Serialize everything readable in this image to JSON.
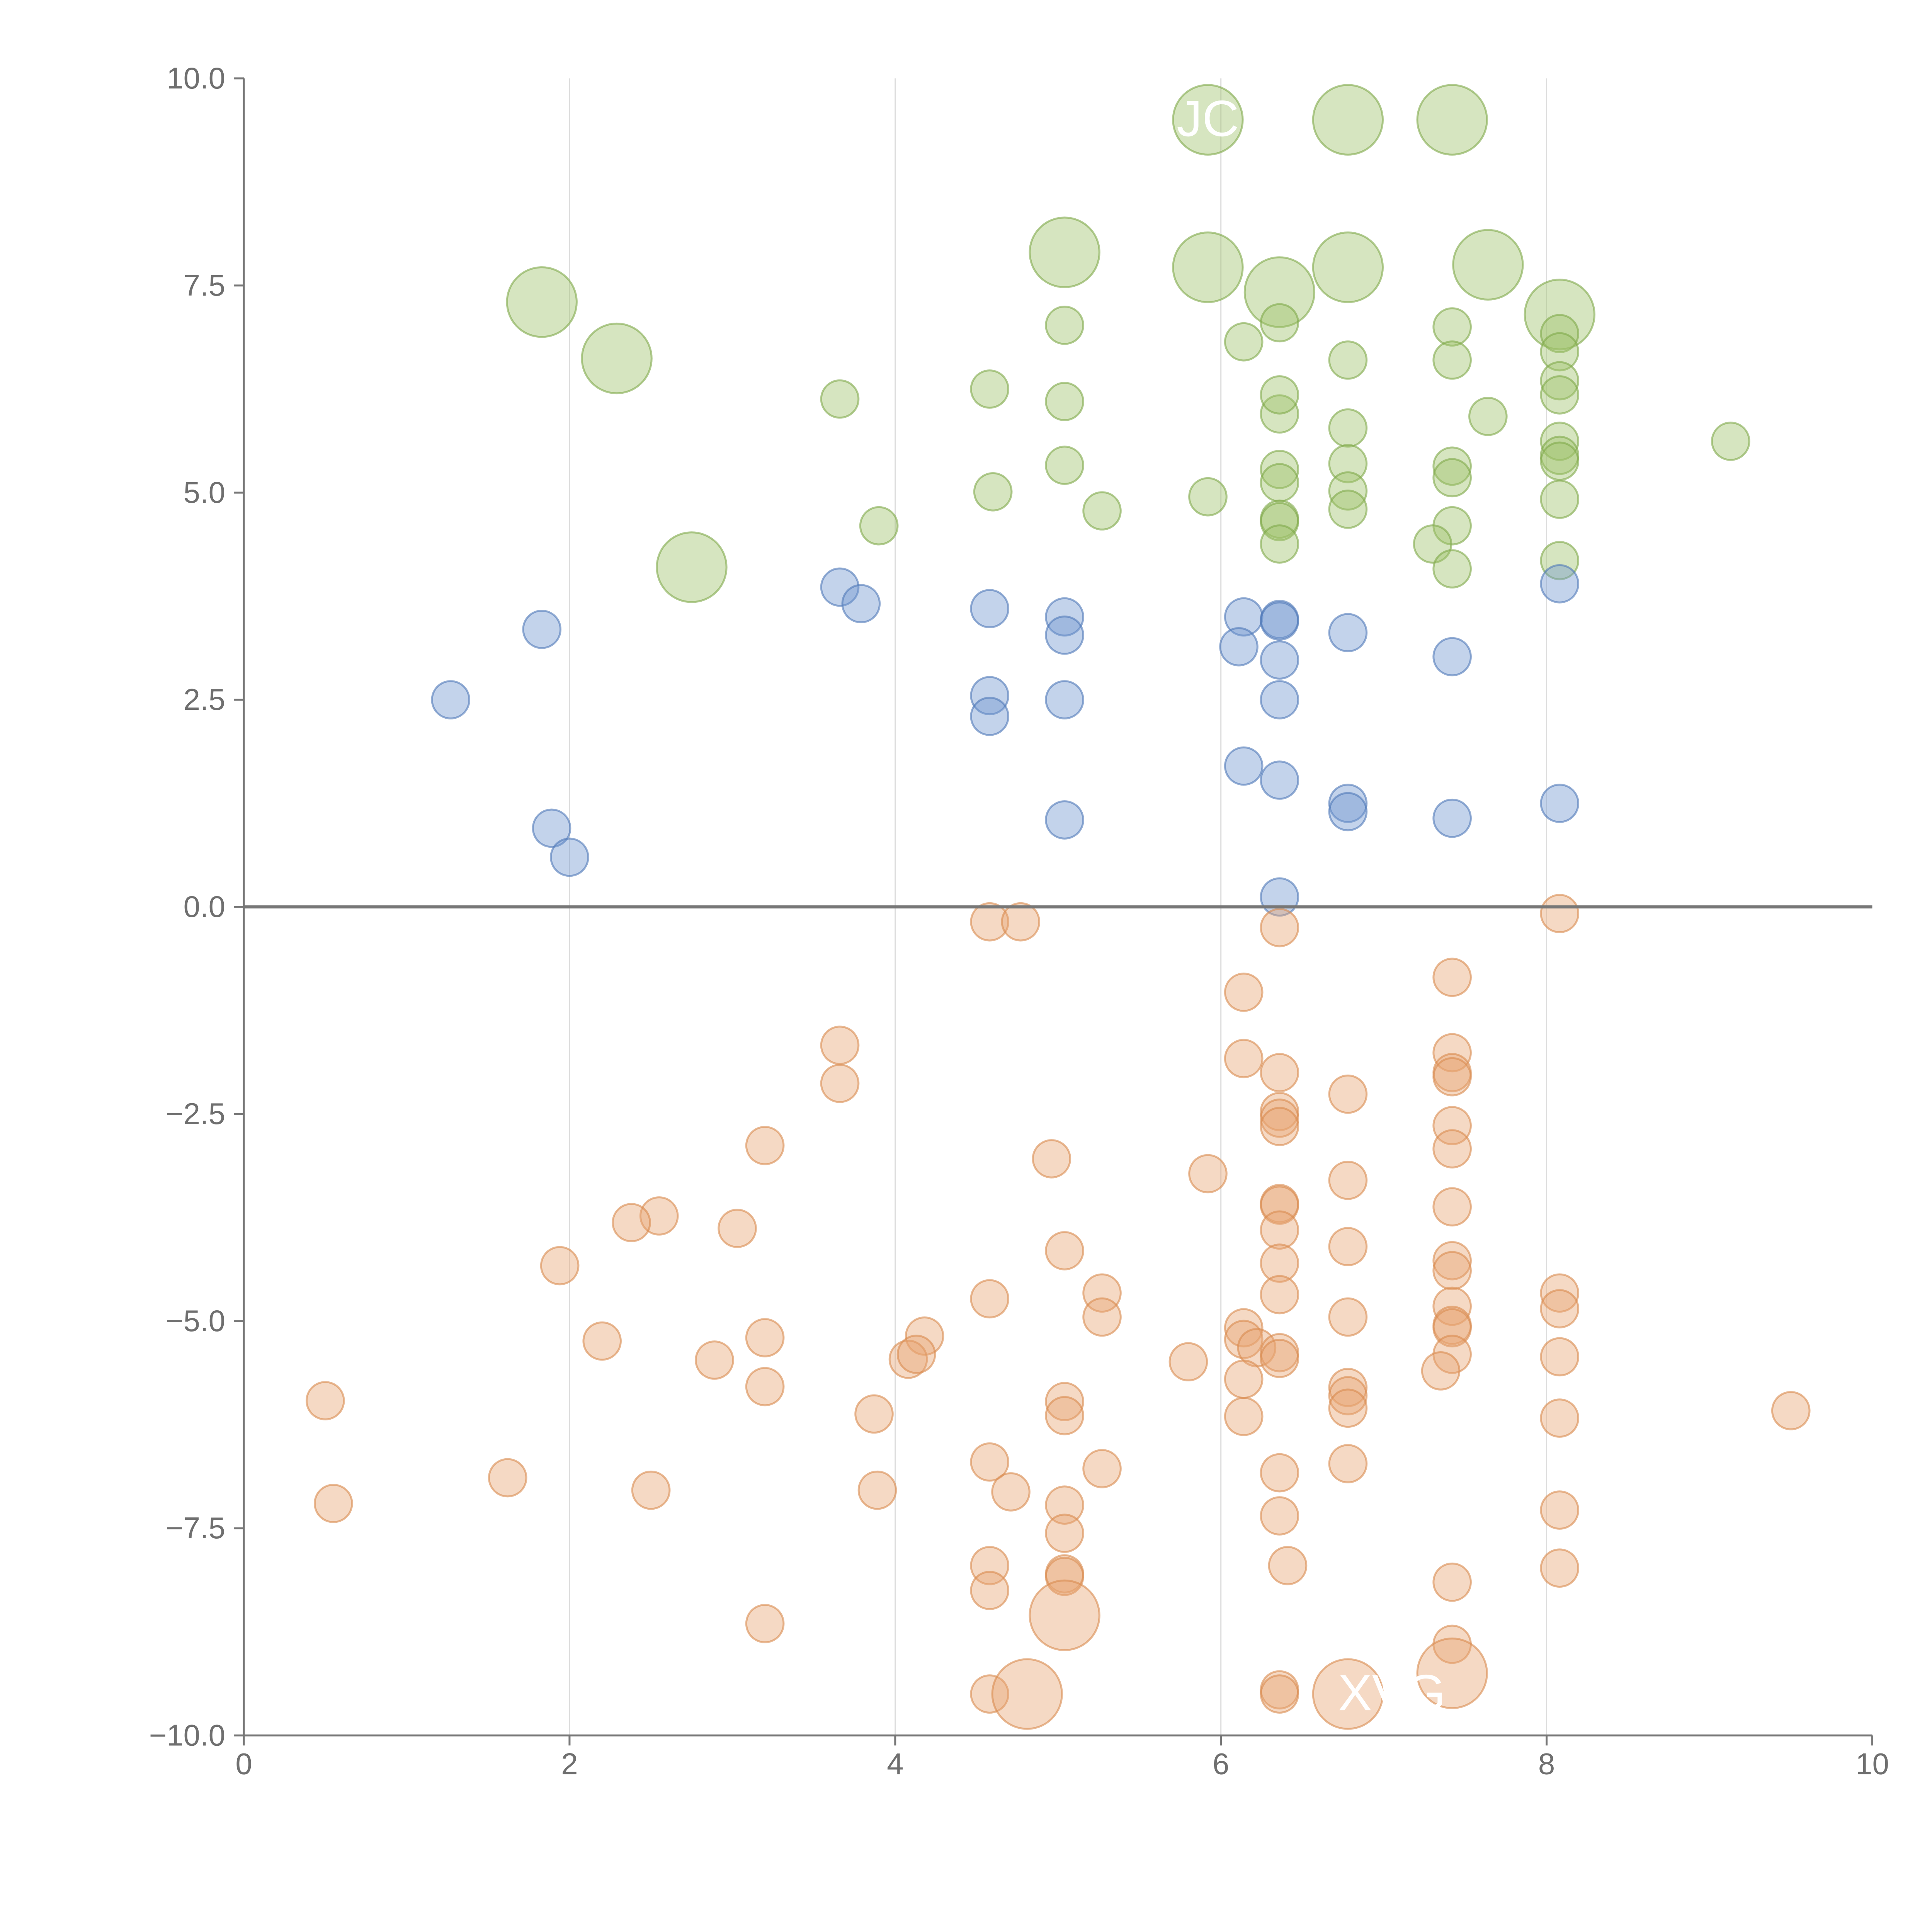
{
  "chart_data": {
    "type": "scatter",
    "title": "",
    "xlabel": "",
    "ylabel": "",
    "xlim": [
      0,
      10
    ],
    "ylim": [
      -10,
      10
    ],
    "x_ticks": [
      0,
      2,
      4,
      6,
      8,
      10
    ],
    "y_ticks": [
      10,
      7.5,
      5,
      2.5,
      0,
      -2.5,
      -5,
      -7.5,
      -10
    ],
    "x_tick_labels": [
      "0",
      "2",
      "4",
      "6",
      "8",
      "10"
    ],
    "y_tick_labels": [
      "10.0",
      "7.5",
      "5.0",
      "2.5",
      "0.0",
      "−2.5",
      "−5.0",
      "−7.5",
      "−10.0"
    ],
    "vertical_gridlines": [
      2,
      4,
      6,
      8
    ],
    "zero_line": 0,
    "legend": "none",
    "series": [
      {
        "name": "green",
        "color": "#9dc26a",
        "stroke": "#7fa84a",
        "points": [
          [
            5.92,
            9.5
          ],
          [
            6.78,
            9.5
          ],
          [
            7.42,
            9.5
          ],
          [
            5.04,
            7.9
          ],
          [
            5.92,
            7.72
          ],
          [
            6.78,
            7.72
          ],
          [
            7.64,
            7.75
          ],
          [
            6.36,
            7.42
          ],
          [
            8.08,
            7.15
          ],
          [
            1.83,
            7.3
          ],
          [
            2.29,
            6.62
          ],
          [
            2.75,
            4.1
          ],
          [
            5.04,
            7.02
          ],
          [
            6.14,
            6.82
          ],
          [
            6.36,
            7.05
          ],
          [
            6.78,
            6.6
          ],
          [
            7.42,
            7.0
          ],
          [
            7.42,
            6.6
          ],
          [
            8.08,
            6.92
          ],
          [
            8.08,
            6.7
          ],
          [
            8.08,
            6.35
          ],
          [
            8.08,
            6.18
          ],
          [
            7.64,
            5.92
          ],
          [
            6.36,
            5.95
          ],
          [
            3.66,
            6.13
          ],
          [
            4.58,
            6.25
          ],
          [
            5.04,
            6.1
          ],
          [
            6.36,
            6.18
          ],
          [
            6.78,
            5.78
          ],
          [
            6.78,
            5.35
          ],
          [
            7.42,
            5.32
          ],
          [
            7.42,
            5.18
          ],
          [
            8.08,
            5.62
          ],
          [
            8.08,
            5.45
          ],
          [
            8.08,
            5.38
          ],
          [
            9.13,
            5.62
          ],
          [
            5.04,
            5.33
          ],
          [
            6.36,
            5.28
          ],
          [
            6.36,
            5.12
          ],
          [
            6.78,
            5.02
          ],
          [
            4.6,
            5.01
          ],
          [
            5.92,
            4.95
          ],
          [
            8.08,
            4.92
          ],
          [
            5.27,
            4.78
          ],
          [
            6.78,
            4.8
          ],
          [
            6.36,
            4.68
          ],
          [
            6.36,
            4.65
          ],
          [
            3.9,
            4.6
          ],
          [
            7.42,
            4.6
          ],
          [
            6.36,
            4.38
          ],
          [
            7.3,
            4.38
          ],
          [
            8.08,
            4.18
          ],
          [
            7.42,
            4.08
          ]
        ],
        "sizes": [
          "large",
          "large",
          "large",
          "large",
          "large",
          "large",
          "large",
          "large",
          "large",
          "large",
          "large",
          "large",
          "small",
          "small",
          "small",
          "small",
          "small",
          "small",
          "small",
          "small",
          "small",
          "small",
          "small",
          "small",
          "small",
          "small",
          "small",
          "small",
          "small",
          "small",
          "small",
          "small",
          "small",
          "small",
          "small",
          "small",
          "small",
          "small",
          "small",
          "small",
          "small",
          "small",
          "small",
          "small",
          "small",
          "small",
          "small",
          "small",
          "small",
          "small",
          "small",
          "small",
          "small"
        ]
      },
      {
        "name": "blue",
        "color": "#7196cf",
        "stroke": "#4f78b8",
        "points": [
          [
            1.27,
            2.5
          ],
          [
            1.83,
            3.35
          ],
          [
            1.89,
            0.95
          ],
          [
            2.0,
            0.6
          ],
          [
            3.66,
            3.86
          ],
          [
            3.79,
            3.66
          ],
          [
            4.58,
            3.6
          ],
          [
            4.58,
            2.55
          ],
          [
            4.58,
            2.3
          ],
          [
            5.04,
            3.5
          ],
          [
            5.04,
            3.28
          ],
          [
            5.04,
            2.5
          ],
          [
            5.04,
            1.05
          ],
          [
            6.14,
            3.5
          ],
          [
            6.11,
            3.14
          ],
          [
            6.36,
            3.47
          ],
          [
            6.36,
            3.45
          ],
          [
            6.36,
            2.98
          ],
          [
            6.36,
            2.5
          ],
          [
            6.14,
            1.7
          ],
          [
            6.36,
            1.53
          ],
          [
            6.36,
            0.12
          ],
          [
            6.78,
            3.31
          ],
          [
            6.78,
            1.25
          ],
          [
            6.78,
            1.15
          ],
          [
            7.42,
            3.02
          ],
          [
            7.42,
            1.07
          ],
          [
            8.08,
            3.9
          ],
          [
            8.08,
            1.25
          ]
        ],
        "sizes": "small"
      },
      {
        "name": "orange",
        "color": "#e8a472",
        "stroke": "#d98a4f",
        "points": [
          [
            4.58,
            -0.18
          ],
          [
            4.77,
            -0.18
          ],
          [
            6.36,
            -0.25
          ],
          [
            8.08,
            -0.08
          ],
          [
            7.42,
            -0.85
          ],
          [
            6.14,
            -1.03
          ],
          [
            3.66,
            -1.67
          ],
          [
            3.66,
            -2.13
          ],
          [
            6.14,
            -1.83
          ],
          [
            6.36,
            -2.0
          ],
          [
            7.42,
            -1.76
          ],
          [
            7.42,
            -2.0
          ],
          [
            7.42,
            -2.05
          ],
          [
            6.78,
            -2.26
          ],
          [
            6.36,
            -2.47
          ],
          [
            6.36,
            -2.55
          ],
          [
            6.36,
            -2.65
          ],
          [
            7.42,
            -2.64
          ],
          [
            3.2,
            -2.88
          ],
          [
            7.42,
            -2.92
          ],
          [
            4.96,
            -3.04
          ],
          [
            5.92,
            -3.22
          ],
          [
            6.78,
            -3.3
          ],
          [
            2.55,
            -3.73
          ],
          [
            2.38,
            -3.81
          ],
          [
            3.03,
            -3.88
          ],
          [
            6.36,
            -3.58
          ],
          [
            6.36,
            -3.6
          ],
          [
            7.42,
            -3.62
          ],
          [
            6.36,
            -3.9
          ],
          [
            6.78,
            -4.1
          ],
          [
            5.04,
            -4.15
          ],
          [
            1.94,
            -4.33
          ],
          [
            6.36,
            -4.3
          ],
          [
            7.42,
            -4.27
          ],
          [
            7.42,
            -4.39
          ],
          [
            5.27,
            -4.66
          ],
          [
            4.58,
            -4.73
          ],
          [
            6.36,
            -4.68
          ],
          [
            8.08,
            -4.66
          ],
          [
            8.08,
            -4.85
          ],
          [
            7.42,
            -4.82
          ],
          [
            6.78,
            -4.95
          ],
          [
            5.27,
            -4.95
          ],
          [
            2.2,
            -5.24
          ],
          [
            3.2,
            -5.2
          ],
          [
            4.18,
            -5.18
          ],
          [
            6.14,
            -5.08
          ],
          [
            6.14,
            -5.22
          ],
          [
            6.22,
            -5.32
          ],
          [
            7.42,
            -5.05
          ],
          [
            7.42,
            -5.08
          ],
          [
            4.08,
            -5.46
          ],
          [
            4.13,
            -5.4
          ],
          [
            2.89,
            -5.47
          ],
          [
            5.8,
            -5.49
          ],
          [
            6.36,
            -5.38
          ],
          [
            6.36,
            -5.45
          ],
          [
            7.42,
            -5.4
          ],
          [
            8.08,
            -5.43
          ],
          [
            7.35,
            -5.6
          ],
          [
            6.14,
            -5.7
          ],
          [
            3.2,
            -5.79
          ],
          [
            6.78,
            -5.8
          ],
          [
            6.78,
            -5.9
          ],
          [
            0.5,
            -5.96
          ],
          [
            5.04,
            -5.97
          ],
          [
            6.78,
            -6.05
          ],
          [
            5.04,
            -6.14
          ],
          [
            3.87,
            -6.12
          ],
          [
            6.14,
            -6.15
          ],
          [
            8.08,
            -6.17
          ],
          [
            9.5,
            -6.08
          ],
          [
            4.58,
            -6.7
          ],
          [
            5.27,
            -6.78
          ],
          [
            6.78,
            -6.72
          ],
          [
            6.36,
            -6.83
          ],
          [
            1.62,
            -6.89
          ],
          [
            0.55,
            -7.2
          ],
          [
            2.5,
            -7.04
          ],
          [
            3.89,
            -7.04
          ],
          [
            4.71,
            -7.06
          ],
          [
            5.04,
            -7.22
          ],
          [
            6.36,
            -7.35
          ],
          [
            8.08,
            -7.28
          ],
          [
            5.04,
            -7.56
          ],
          [
            4.58,
            -7.95
          ],
          [
            6.41,
            -7.95
          ],
          [
            8.08,
            -7.98
          ],
          [
            5.04,
            -8.05
          ],
          [
            5.04,
            -8.08
          ],
          [
            4.58,
            -8.25
          ],
          [
            7.42,
            -8.15
          ],
          [
            7.42,
            -8.9
          ],
          [
            4.58,
            -9.5
          ],
          [
            6.36,
            -9.45
          ],
          [
            6.36,
            -9.5
          ],
          [
            3.2,
            -8.65
          ],
          [
            5.04,
            -8.55
          ],
          [
            4.81,
            -9.5
          ],
          [
            6.78,
            -9.5
          ],
          [
            7.42,
            -9.25
          ]
        ],
        "large_from_index": 98
      }
    ],
    "bubble_labels": [
      {
        "text": "JC",
        "x": 5.92,
        "y": 9.5
      },
      {
        "text": "XVG",
        "x": 7.05,
        "y": -9.5
      }
    ]
  }
}
